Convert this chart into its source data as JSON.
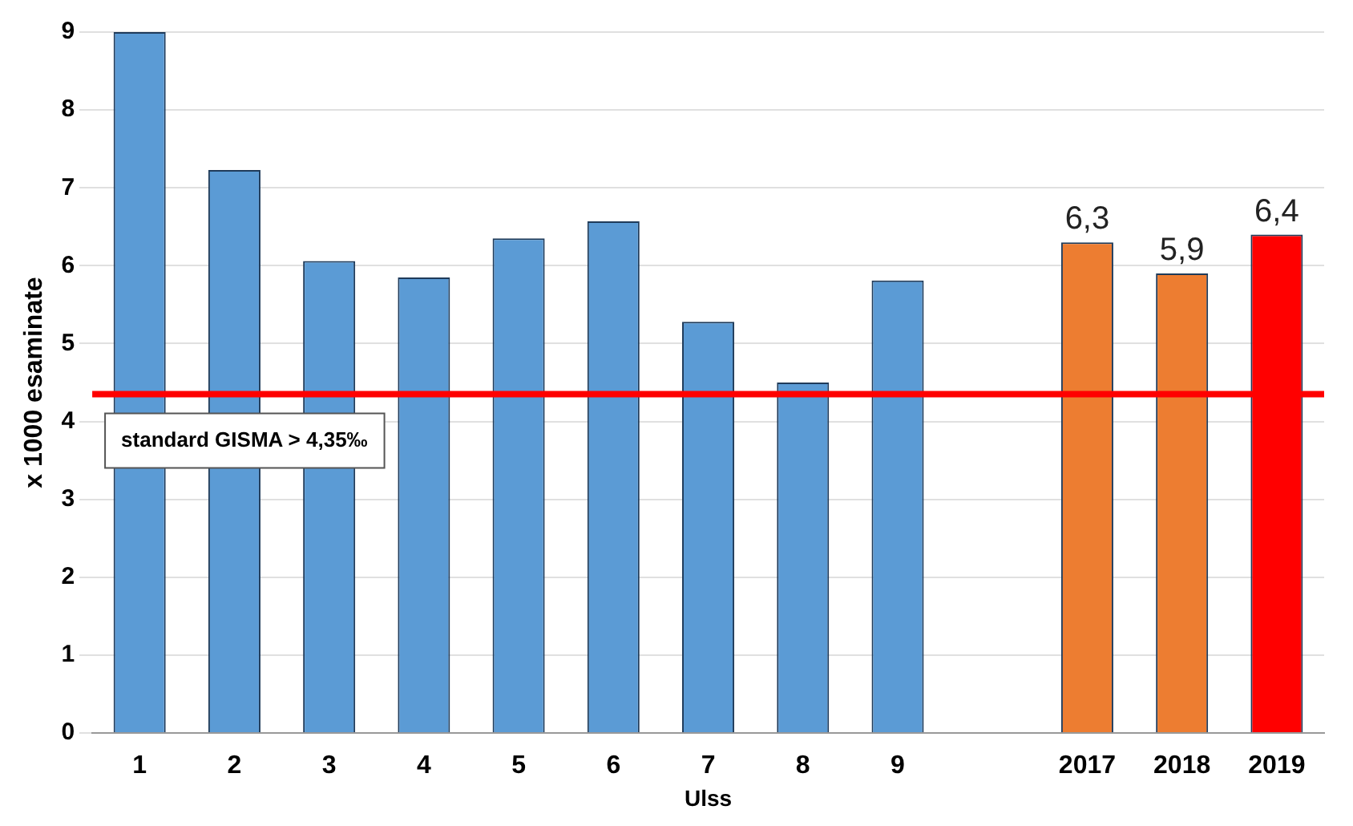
{
  "chart_data": {
    "type": "bar",
    "xlabel": "Ulss",
    "ylabel": "x 1000 esaminate",
    "categories": [
      "1",
      "2",
      "3",
      "4",
      "5",
      "6",
      "7",
      "8",
      "9",
      null,
      "2017",
      "2018",
      "2019"
    ],
    "values": [
      9,
      7.23,
      6.06,
      5.85,
      6.35,
      6.57,
      5.28,
      4.5,
      5.81,
      null,
      6.3,
      5.9,
      6.4
    ],
    "colors": [
      "#5b9bd5",
      "#5b9bd5",
      "#5b9bd5",
      "#5b9bd5",
      "#5b9bd5",
      "#5b9bd5",
      "#5b9bd5",
      "#5b9bd5",
      "#5b9bd5",
      "#5b9bd5",
      "#ed7d31",
      "#ed7d31",
      "#ff0000"
    ],
    "value_labels": [
      null,
      null,
      null,
      null,
      null,
      null,
      null,
      null,
      null,
      null,
      "6,3",
      "5,9",
      "6,4"
    ],
    "ylim": [
      0,
      9
    ],
    "yticks": [
      0,
      1,
      2,
      3,
      4,
      5,
      6,
      7,
      8,
      9
    ],
    "grid": "y",
    "legend": false,
    "ref_lines": [
      {
        "axis": "y",
        "value": 4.35,
        "label": "standard GISMA > 4,35‰",
        "color": "#ff0000"
      }
    ]
  }
}
